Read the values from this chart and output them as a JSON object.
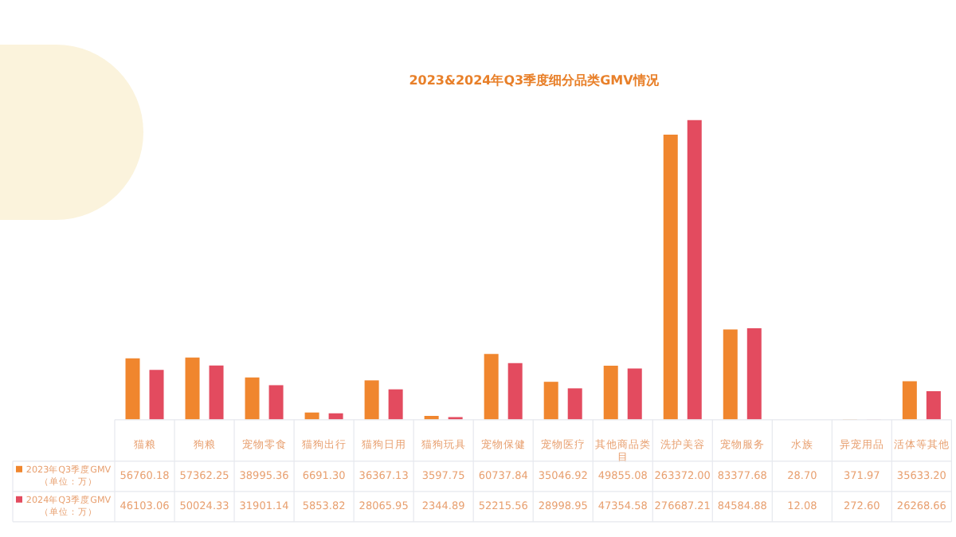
{
  "chart_data": {
    "type": "bar",
    "title": "2023&2024年Q3季度细分品类GMV情况",
    "legend": "bottom left",
    "categories": [
      "猫粮",
      "狗粮",
      "宠物零食",
      "猫狗出行",
      "猫狗日用",
      "猫狗玩具",
      "宠物保健",
      "宠物医疗",
      "其他商品类目",
      "洗护美容",
      "宠物服务",
      "水族",
      "异宠用品",
      "活体等其他"
    ],
    "series": [
      {
        "name": "2023年Q3季度GMV（单位：万）",
        "color": "#f0862e",
        "values": [
          56760.18,
          57362.25,
          38995.36,
          6691.3,
          36367.13,
          3597.75,
          60737.84,
          35046.92,
          49855.08,
          263372,
          83377.68,
          28.7,
          371.97,
          35633.2
        ],
        "value_labels": [
          "56760.18",
          "57362.25",
          "38995.36",
          "6691.30",
          "36367.13",
          "3597.75",
          "60737.84",
          "35046.92",
          "49855.08",
          "263372.00",
          "83377.68",
          "28.70",
          "371.97",
          "35633.20"
        ]
      },
      {
        "name": "2024年Q3季度GMV（单位：万）",
        "color": "#e34b5f",
        "values": [
          46103.06,
          50024.33,
          31901.14,
          5853.82,
          28065.95,
          2344.89,
          52215.56,
          28998.95,
          47354.58,
          276687.21,
          84584.88,
          12.08,
          272.6,
          26268.66
        ],
        "value_labels": [
          "46103.06",
          "50024.33",
          "31901.14",
          "5853.82",
          "28065.95",
          "2344.89",
          "52215.56",
          "28998.95",
          "47354.58",
          "276687.21",
          "84584.88",
          "12.08",
          "272.60",
          "26268.66"
        ]
      }
    ]
  }
}
